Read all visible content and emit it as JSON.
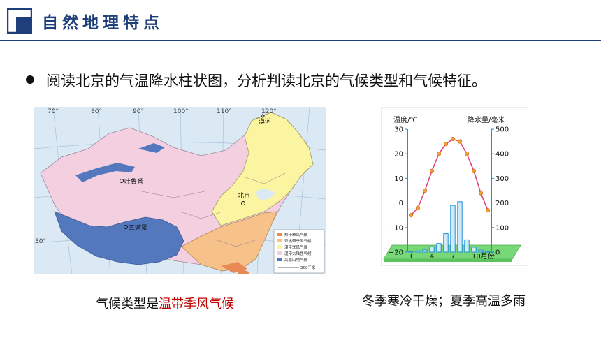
{
  "header": {
    "title": "自然地理特点"
  },
  "bullet": {
    "text": "阅读北京的气温降水柱状图，分析判读北京的气候类型和气候特征。"
  },
  "map": {
    "lon_labels": [
      "70°",
      "80°",
      "90°",
      "100°",
      "110°",
      "120°"
    ],
    "lat_label": "30°",
    "place_labels": [
      "北京",
      "吐鲁番",
      "五道梁",
      "漠河"
    ],
    "legend": [
      "热带季风气候",
      "亚热带季风气候",
      "温带季风气候",
      "温带大陆性气候",
      "高原山地气候"
    ],
    "scale_label": "500千米"
  },
  "climate_chart": {
    "temp_axis_title": "温度/℃",
    "precip_axis_title": "降水量/毫米",
    "temp_ticks": [
      "30",
      "20",
      "10",
      "0",
      "−10",
      "−20"
    ],
    "precip_ticks": [
      "500",
      "400",
      "300",
      "200",
      "100",
      "0"
    ],
    "month_labels": [
      "1",
      "4",
      "7",
      "10月份"
    ]
  },
  "chart_data": {
    "type": "bar",
    "title": "",
    "xlabel": "",
    "ylabel": "温度/℃",
    "y2label": "降水量/毫米",
    "categories": [
      "1",
      "2",
      "3",
      "4",
      "5",
      "6",
      "7",
      "8",
      "9",
      "10",
      "11",
      "12"
    ],
    "series": [
      {
        "name": "",
        "kind": "line",
        "axis": "left",
        "values": [
          -5,
          -2,
          5,
          13,
          20,
          24,
          26,
          25,
          20,
          13,
          4,
          -3
        ]
      },
      {
        "name": "",
        "kind": "bar",
        "axis": "right",
        "values": [
          3,
          5,
          9,
          22,
          35,
          75,
          190,
          205,
          50,
          20,
          8,
          3
        ]
      }
    ],
    "ylim": [
      -20,
      30
    ],
    "y2lim": [
      0,
      500
    ]
  },
  "captions": {
    "left_prefix": "气候类型是",
    "left_highlight": "温带季风气候",
    "right": "冬季寒冷干燥；夏季高温多雨"
  }
}
